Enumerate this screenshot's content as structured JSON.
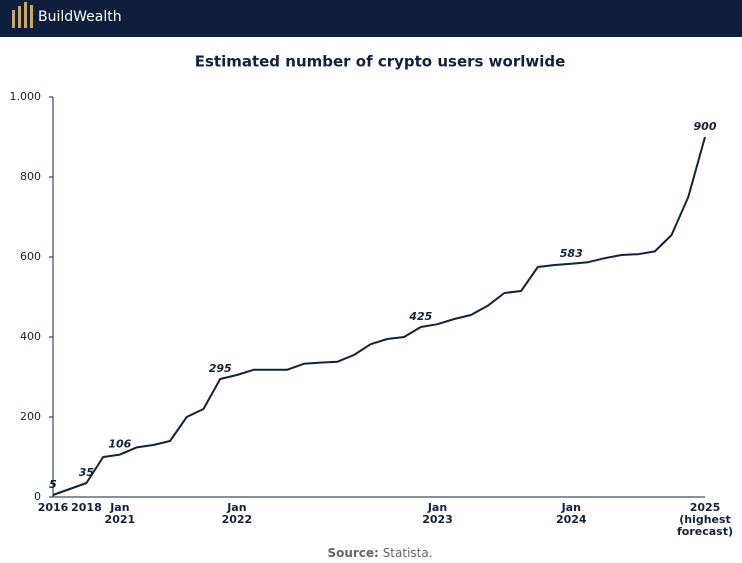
{
  "header": {
    "brand": "BuildWealth"
  },
  "chart_data": {
    "type": "line",
    "title": "Estimated number of crypto users worlwide",
    "categories": [
      "2016",
      null,
      "2018",
      null,
      "Jan 2021",
      null,
      null,
      null,
      null,
      null,
      null,
      "Jan 2022",
      null,
      null,
      null,
      null,
      null,
      null,
      null,
      null,
      null,
      null,
      null,
      "Jan 2023",
      null,
      null,
      null,
      null,
      null,
      null,
      null,
      "Jan 2024",
      null,
      null,
      null,
      null,
      null,
      null,
      null,
      "2025 (highest forecast)"
    ],
    "series": [
      {
        "name": "Crypto users",
        "color": "#13213c",
        "values": [
          5,
          20,
          35,
          100,
          106,
          124,
          130,
          140,
          200,
          220,
          295,
          305,
          318,
          318,
          318,
          333,
          336,
          338,
          355,
          382,
          395,
          400,
          425,
          432,
          445,
          455,
          478,
          510,
          515,
          575,
          580,
          583,
          587,
          597,
          605,
          607,
          614,
          655,
          750,
          900
        ],
        "value_labels": [
          "5",
          null,
          "35",
          null,
          "106",
          null,
          null,
          null,
          null,
          null,
          "295",
          null,
          null,
          null,
          null,
          null,
          null,
          null,
          null,
          null,
          null,
          null,
          "425",
          null,
          null,
          null,
          null,
          null,
          null,
          null,
          null,
          "583",
          null,
          null,
          null,
          null,
          null,
          null,
          null,
          "900"
        ]
      }
    ],
    "ylim": [
      0,
      1000
    ],
    "yticks": [
      0,
      200,
      400,
      600,
      800,
      {
        "value": 1000,
        "label": "1.000"
      }
    ],
    "grid": false,
    "source_label": "Source:",
    "source": "Statista."
  }
}
